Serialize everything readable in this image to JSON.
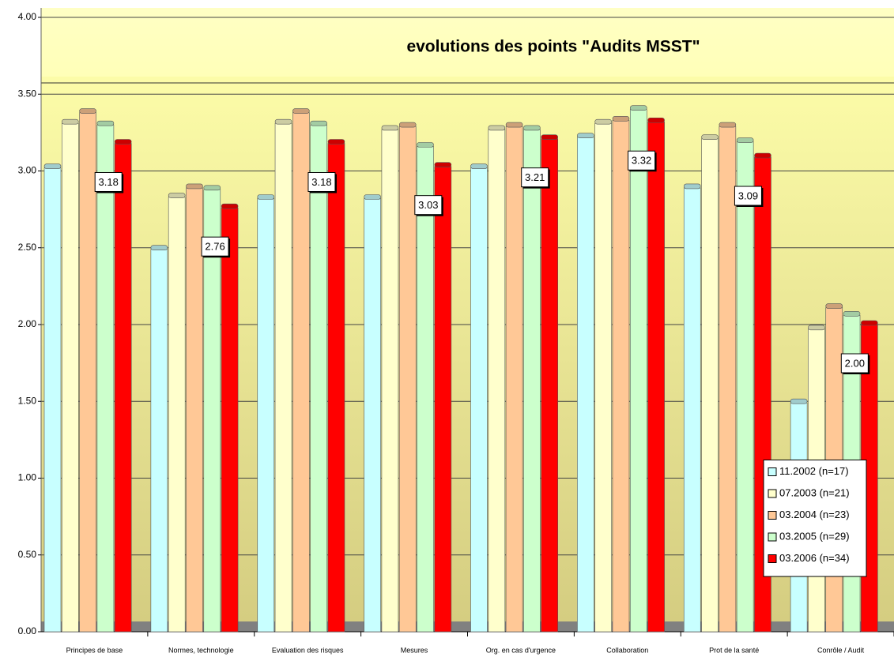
{
  "chart_data": {
    "type": "bar",
    "title": "evolutions des points \"Audits MSST\"",
    "categories": [
      "Principes de base",
      "Normes, technologie",
      "Evaluation des risques",
      "Mesures",
      "Org. en cas d'urgence",
      "Collaboration",
      "Prot de la santé",
      "Conrôle / Audit"
    ],
    "series": [
      {
        "name": "11.2002 (n=17)",
        "color": "#c8ffff",
        "values": [
          3.02,
          2.49,
          2.82,
          2.82,
          3.02,
          3.22,
          2.89,
          1.49
        ]
      },
      {
        "name": "07.2003 (n=21)",
        "color": "#ffffcc",
        "values": [
          3.31,
          2.83,
          3.31,
          3.27,
          3.27,
          3.31,
          3.21,
          1.97
        ]
      },
      {
        "name": "03.2004 (n=23)",
        "color": "#ffc896",
        "values": [
          3.38,
          2.89,
          3.38,
          3.29,
          3.29,
          3.33,
          3.29,
          2.11
        ]
      },
      {
        "name": "03.2005 (n=29)",
        "color": "#ccffcc",
        "values": [
          3.3,
          2.88,
          3.3,
          3.16,
          3.27,
          3.4,
          3.19,
          2.06
        ]
      },
      {
        "name": "03.2006 (n=34)",
        "color": "#ff0000",
        "values": [
          3.18,
          2.76,
          3.18,
          3.03,
          3.21,
          3.32,
          3.09,
          2.0
        ],
        "value_labels": [
          "3.18",
          "2.76",
          "3.18",
          "3.03",
          "3.21",
          "3.32",
          "3.09",
          "2.00"
        ]
      }
    ],
    "ylim": [
      0,
      4
    ],
    "yticks": [
      {
        "value": 0,
        "label": "0.00"
      },
      {
        "value": 0.5,
        "label": "0.50"
      },
      {
        "value": 1,
        "label": "1.00"
      },
      {
        "value": 1.5,
        "label": "1.50"
      },
      {
        "value": 2,
        "label": "2.00"
      },
      {
        "value": 2.5,
        "label": "2.50"
      },
      {
        "value": 3,
        "label": "3.00"
      },
      {
        "value": 3.5,
        "label": "3.50"
      },
      {
        "value": 4,
        "label": "4.00"
      }
    ],
    "grid": true,
    "legend": "lower right"
  }
}
